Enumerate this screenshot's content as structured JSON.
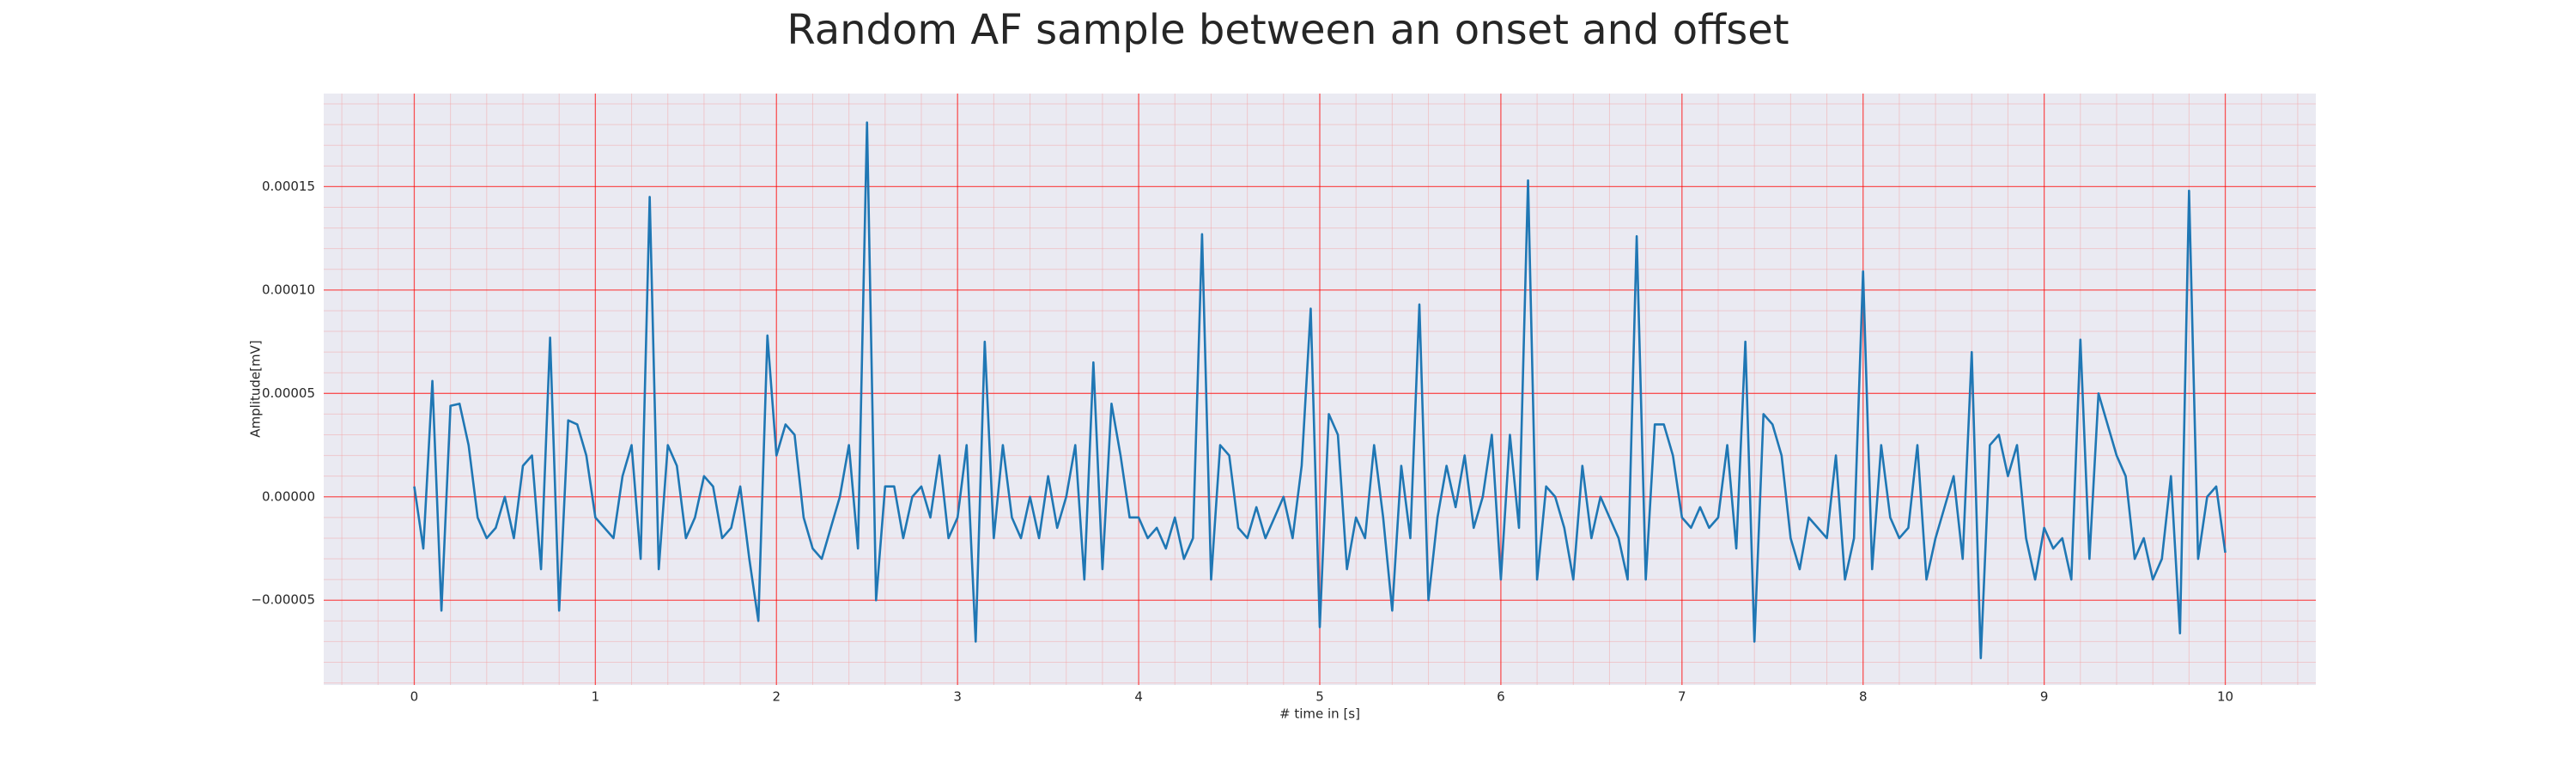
{
  "chart_data": {
    "type": "line",
    "title": "Random AF sample between an onset and offset",
    "x_label": "# time in [s]",
    "y_label": "Amplitude[mV]",
    "color": "#1f77b4",
    "grid": true,
    "minor_grid": 5,
    "xlim": [
      -0.5,
      10.5
    ],
    "ylim": [
      -9.1e-05,
      0.000195
    ],
    "xticks": [
      0,
      1,
      2,
      3,
      4,
      5,
      6,
      7,
      8,
      9,
      10
    ],
    "yticks": [
      {
        "value": -5e-05,
        "label": "−0.00005"
      },
      {
        "value": 0,
        "label": "0.00000"
      },
      {
        "value": 5e-05,
        "label": "0.00005"
      },
      {
        "value": 0.0001,
        "label": "0.00010"
      },
      {
        "value": 0.00015,
        "label": "0.00015"
      }
    ],
    "x": [
      0,
      0.05,
      0.1,
      0.15,
      0.2,
      0.25,
      0.3,
      0.35,
      0.4,
      0.45,
      0.5,
      0.55,
      0.6,
      0.65,
      0.7,
      0.75,
      0.8,
      0.85,
      0.9,
      0.95,
      1,
      1.05,
      1.1,
      1.15,
      1.2,
      1.25,
      1.3,
      1.35,
      1.4,
      1.45,
      1.5,
      1.55,
      1.6,
      1.65,
      1.7,
      1.75,
      1.8,
      1.85,
      1.9,
      1.95,
      2,
      2.05,
      2.1,
      2.15,
      2.2,
      2.25,
      2.3,
      2.35,
      2.4,
      2.45,
      2.5,
      2.55,
      2.6,
      2.65,
      2.7,
      2.75,
      2.8,
      2.85,
      2.9,
      2.95,
      3,
      3.05,
      3.1,
      3.15,
      3.2,
      3.25,
      3.3,
      3.35,
      3.4,
      3.45,
      3.5,
      3.55,
      3.6,
      3.65,
      3.7,
      3.75,
      3.8,
      3.85,
      3.9,
      3.95,
      4,
      4.05,
      4.1,
      4.15,
      4.2,
      4.25,
      4.3,
      4.35,
      4.4,
      4.45,
      4.5,
      4.55,
      4.6,
      4.65,
      4.7,
      4.75,
      4.8,
      4.85,
      4.9,
      4.95,
      5,
      5.05,
      5.1,
      5.15,
      5.2,
      5.25,
      5.3,
      5.35,
      5.4,
      5.45,
      5.5,
      5.55,
      5.6,
      5.65,
      5.7,
      5.75,
      5.8,
      5.85,
      5.9,
      5.95,
      6,
      6.05,
      6.1,
      6.15,
      6.2,
      6.25,
      6.3,
      6.35,
      6.4,
      6.45,
      6.5,
      6.55,
      6.6,
      6.65,
      6.7,
      6.75,
      6.8,
      6.85,
      6.9,
      6.95,
      7,
      7.05,
      7.1,
      7.15,
      7.2,
      7.25,
      7.3,
      7.35,
      7.4,
      7.45,
      7.5,
      7.55,
      7.6,
      7.65,
      7.7,
      7.75,
      7.8,
      7.85,
      7.9,
      7.95,
      8,
      8.05,
      8.1,
      8.15,
      8.2,
      8.25,
      8.3,
      8.35,
      8.4,
      8.45,
      8.5,
      8.55,
      8.6,
      8.65,
      8.7,
      8.75,
      8.8,
      8.85,
      8.9,
      8.95,
      9,
      9.05,
      9.1,
      9.15,
      9.2,
      9.25,
      9.3,
      9.35,
      9.4,
      9.45,
      9.5,
      9.55,
      9.6,
      9.65,
      9.7,
      9.75,
      9.8,
      9.85,
      9.9,
      9.95,
      10
    ],
    "values": [
      5e-06,
      -2.5e-05,
      5.6e-05,
      -5.5e-05,
      4.4e-05,
      4.5e-05,
      2.5e-05,
      -1e-05,
      -2e-05,
      -1.5e-05,
      0,
      -2e-05,
      1.5e-05,
      2e-05,
      -3.5e-05,
      7.7e-05,
      -5.5e-05,
      3.7e-05,
      3.5e-05,
      2e-05,
      -1e-05,
      -1.5e-05,
      -2e-05,
      1e-05,
      2.5e-05,
      -3e-05,
      0.000145,
      -3.5e-05,
      2.5e-05,
      1.5e-05,
      -2e-05,
      -1e-05,
      1e-05,
      5e-06,
      -2e-05,
      -1.5e-05,
      5e-06,
      -3e-05,
      -6e-05,
      7.8e-05,
      2e-05,
      3.5e-05,
      3e-05,
      -1e-05,
      -2.5e-05,
      -3e-05,
      -1.5e-05,
      0,
      2.5e-05,
      -2.5e-05,
      0.000181,
      -5e-05,
      5e-06,
      5e-06,
      -2e-05,
      0,
      5e-06,
      -1e-05,
      2e-05,
      -2e-05,
      -1e-05,
      2.5e-05,
      -7e-05,
      7.5e-05,
      -2e-05,
      2.5e-05,
      -1e-05,
      -2e-05,
      0,
      -2e-05,
      1e-05,
      -1.5e-05,
      0,
      2.5e-05,
      -4e-05,
      6.5e-05,
      -3.5e-05,
      4.5e-05,
      2e-05,
      -1e-05,
      -1e-05,
      -2e-05,
      -1.5e-05,
      -2.5e-05,
      -1e-05,
      -3e-05,
      -2e-05,
      0.000127,
      -4e-05,
      2.5e-05,
      2e-05,
      -1.5e-05,
      -2e-05,
      -5e-06,
      -2e-05,
      -1e-05,
      0,
      -2e-05,
      1.5e-05,
      9.1e-05,
      -6.3e-05,
      4e-05,
      3e-05,
      -3.5e-05,
      -1e-05,
      -2e-05,
      2.5e-05,
      -1e-05,
      -5.5e-05,
      1.5e-05,
      -2e-05,
      9.3e-05,
      -5e-05,
      -1e-05,
      1.5e-05,
      -5e-06,
      2e-05,
      -1.5e-05,
      0,
      3e-05,
      -4e-05,
      3e-05,
      -1.5e-05,
      0.000153,
      -4e-05,
      5e-06,
      0,
      -1.5e-05,
      -4e-05,
      1.5e-05,
      -2e-05,
      0,
      -1e-05,
      -2e-05,
      -4e-05,
      0.000126,
      -4e-05,
      3.5e-05,
      3.5e-05,
      2e-05,
      -1e-05,
      -1.5e-05,
      -5e-06,
      -1.5e-05,
      -1e-05,
      2.5e-05,
      -2.5e-05,
      7.5e-05,
      -7e-05,
      4e-05,
      3.5e-05,
      2e-05,
      -2e-05,
      -3.5e-05,
      -1e-05,
      -1.5e-05,
      -2e-05,
      2e-05,
      -4e-05,
      -2e-05,
      0.000109,
      -3.5e-05,
      2.5e-05,
      -1e-05,
      -2e-05,
      -1.5e-05,
      2.5e-05,
      -4e-05,
      -2e-05,
      -5e-06,
      1e-05,
      -3e-05,
      7e-05,
      -7.8e-05,
      2.5e-05,
      3e-05,
      1e-05,
      2.5e-05,
      -2e-05,
      -4e-05,
      -1.5e-05,
      -2.5e-05,
      -2e-05,
      -4e-05,
      7.6e-05,
      -3e-05,
      5e-05,
      3.5e-05,
      2e-05,
      1e-05,
      -3e-05,
      -2e-05,
      -4e-05,
      -3e-05,
      1e-05,
      -6.6e-05,
      0.000148,
      -3e-05,
      0,
      5e-06,
      -2.7e-05
    ]
  }
}
